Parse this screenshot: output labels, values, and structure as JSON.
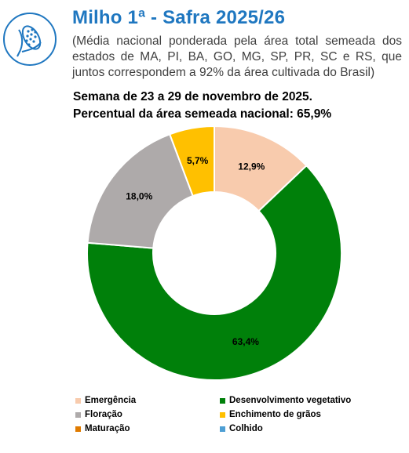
{
  "header": {
    "title": "Milho 1ª - Safra 2025/26",
    "subtitle": "(Média nacional ponderada pela área total semeada dos estados de MA, PI, BA, GO, MG, SP, PR, SC e RS, que juntos correspondem a 92% da área cultivada do Brasil)",
    "week": "Semana de 23 a 29 de novembro de 2025.",
    "planted": "Percentual da área semeada nacional: 65,9%",
    "icon": "corn-icon"
  },
  "chart_data": {
    "type": "pie",
    "donut": true,
    "categories": [
      "Emergência",
      "Desenvolvimento vegetativo",
      "Floração",
      "Enchimento de grãos",
      "Maturação",
      "Colhido"
    ],
    "values": [
      12.9,
      63.4,
      18.0,
      5.7,
      0.0,
      0.0
    ],
    "labels": [
      "12,9%",
      "63,4%",
      "18,0%",
      "5,7%",
      "",
      ""
    ],
    "colors": [
      "#f8cbad",
      "#00800a",
      "#aeaaaa",
      "#ffc000",
      "#e07b00",
      "#4e9fd4"
    ],
    "legend_position": "bottom"
  }
}
